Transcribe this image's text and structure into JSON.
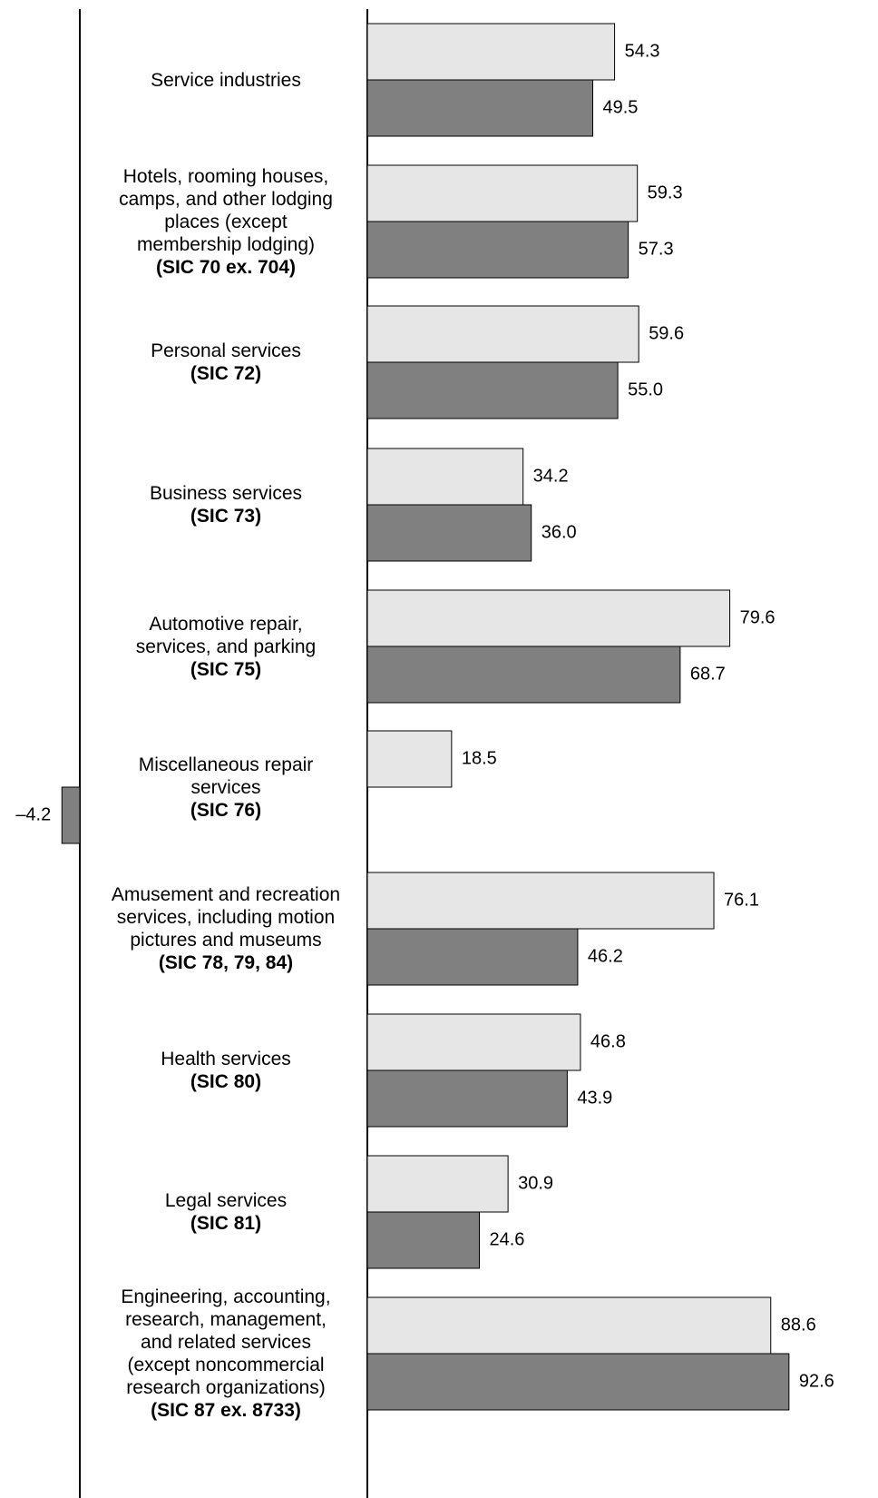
{
  "chart_data": {
    "type": "bar",
    "orientation": "horizontal",
    "series_colors": [
      "#e6e6e6",
      "#808080"
    ],
    "grid": false,
    "categories": [
      {
        "name": "Service industries",
        "sic": ""
      },
      {
        "name": "Hotels, rooming houses,\ncamps, and other lodging\nplaces (except\nmembership lodging)",
        "sic": "(SIC 70 ex. 704)"
      },
      {
        "name": "Personal services",
        "sic": "(SIC 72)"
      },
      {
        "name": "Business services",
        "sic": "(SIC 73)"
      },
      {
        "name": "Automotive repair,\nservices, and parking",
        "sic": "(SIC 75)"
      },
      {
        "name": "Miscellaneous repair\nservices",
        "sic": "(SIC 76)"
      },
      {
        "name": "Amusement and recreation\nservices, including motion\npictures and museums",
        "sic": "(SIC 78, 79, 84)"
      },
      {
        "name": "Health services",
        "sic": "(SIC 80)"
      },
      {
        "name": "Legal services",
        "sic": "(SIC 81)"
      },
      {
        "name": "Engineering, accounting,\nresearch, management,\nand related services\n(except noncommercial\nresearch organizations)",
        "sic": "(SIC 87 ex. 8733)"
      }
    ],
    "series": [
      {
        "values": [
          54.3,
          59.3,
          59.6,
          34.2,
          79.6,
          18.5,
          76.1,
          46.8,
          30.9,
          88.6
        ]
      },
      {
        "values": [
          49.5,
          57.3,
          55.0,
          36.0,
          68.7,
          -4.2,
          46.2,
          43.9,
          24.6,
          92.6
        ]
      }
    ],
    "value_labels": [
      [
        "54.3",
        "59.3",
        "59.6",
        "34.2",
        "79.6",
        "18.5",
        "76.1",
        "46.8",
        "30.9",
        "88.6"
      ],
      [
        "49.5",
        "57.3",
        "55.0",
        "36.0",
        "68.7",
        "–4.2",
        "46.2",
        "43.9",
        "24.6",
        "92.6"
      ]
    ],
    "xlim": [
      -4.2,
      100
    ]
  }
}
